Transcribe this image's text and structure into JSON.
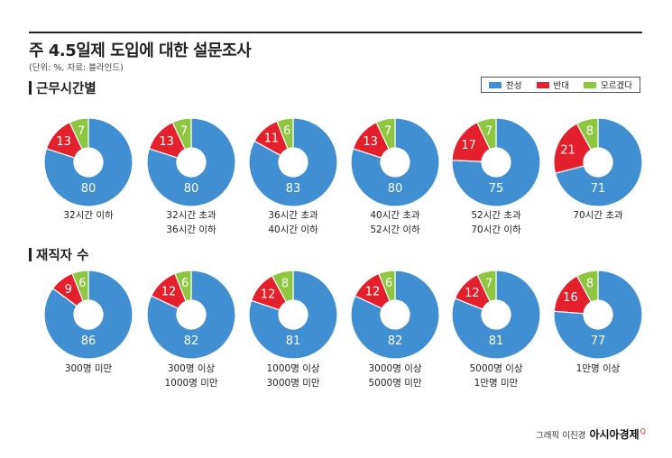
{
  "title": "주 4.5일제 도입에 대한 설문조사",
  "subtitle": "(단위: %, 자료: 블라인드)",
  "legend": {
    "items": [
      {
        "label": "찬성",
        "color": "#3f8fd2"
      },
      {
        "label": "반대",
        "color": "#e3202b"
      },
      {
        "label": "모르겠다",
        "color": "#8dc63f"
      }
    ]
  },
  "credit": {
    "prefix": "그래픽 이진경",
    "brand": "아시아경제",
    "mark": "Q"
  },
  "chart_data": [
    {
      "type": "pie",
      "donut": true,
      "title": "근무시간별",
      "series_names": [
        "찬성",
        "반대",
        "모르겠다"
      ],
      "colors": [
        "#3f8fd2",
        "#e3202b",
        "#8dc63f"
      ],
      "groups": [
        {
          "label_lines": [
            "32시간 이하"
          ],
          "values": [
            80,
            13,
            7
          ]
        },
        {
          "label_lines": [
            "32시간 초과",
            "36시간 이하"
          ],
          "values": [
            80,
            13,
            7
          ]
        },
        {
          "label_lines": [
            "36시간 초과",
            "40시간 이하"
          ],
          "values": [
            83,
            11,
            6
          ]
        },
        {
          "label_lines": [
            "40시간 초과",
            "52시간 이하"
          ],
          "values": [
            80,
            13,
            7
          ]
        },
        {
          "label_lines": [
            "52시간 초과",
            "70시간 이하"
          ],
          "values": [
            75,
            17,
            7
          ]
        },
        {
          "label_lines": [
            "70시간 초과"
          ],
          "values": [
            71,
            21,
            8
          ]
        }
      ]
    },
    {
      "type": "pie",
      "donut": true,
      "title": "재직자 수",
      "series_names": [
        "찬성",
        "반대",
        "모르겠다"
      ],
      "colors": [
        "#3f8fd2",
        "#e3202b",
        "#8dc63f"
      ],
      "groups": [
        {
          "label_lines": [
            "300명 미만"
          ],
          "values": [
            86,
            9,
            6
          ]
        },
        {
          "label_lines": [
            "300명 이상",
            "1000명 미만"
          ],
          "values": [
            82,
            12,
            6
          ]
        },
        {
          "label_lines": [
            "1000명 이상",
            "3000명 미만"
          ],
          "values": [
            81,
            12,
            8
          ]
        },
        {
          "label_lines": [
            "3000명 이상",
            "5000명 미만"
          ],
          "values": [
            82,
            12,
            6
          ]
        },
        {
          "label_lines": [
            "5000명 이상",
            "1만명 미만"
          ],
          "values": [
            81,
            12,
            7
          ]
        },
        {
          "label_lines": [
            "1만명 이상"
          ],
          "values": [
            77,
            16,
            8
          ]
        }
      ]
    }
  ]
}
